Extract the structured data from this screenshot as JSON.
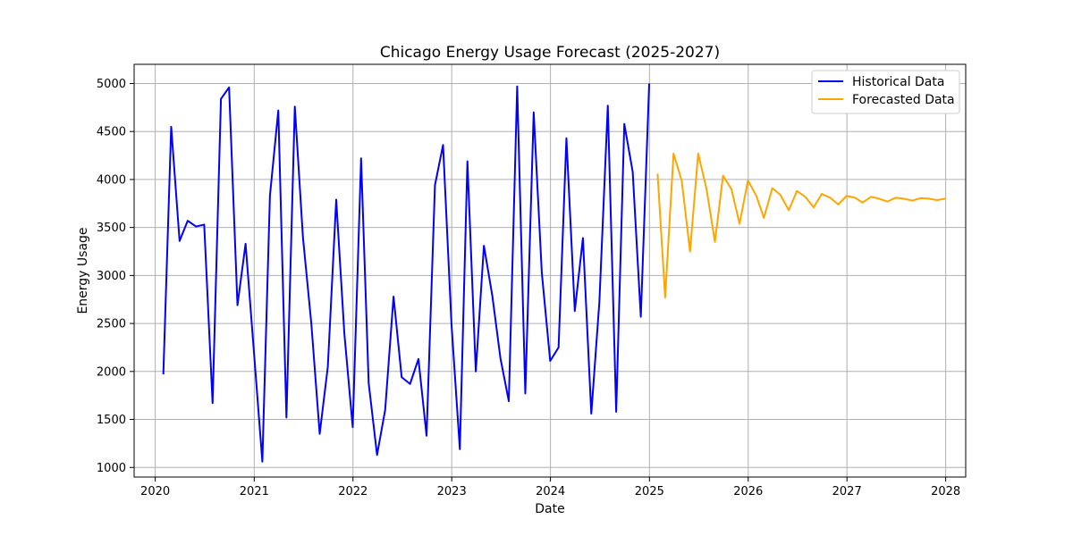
{
  "chart_data": {
    "type": "line",
    "title": "Chicago Energy Usage Forecast (2025-2027)",
    "xlabel": "Date",
    "ylabel": "Energy Usage",
    "xlim": [
      "2019-10-15",
      "2028-03-15"
    ],
    "ylim": [
      900,
      5200
    ],
    "x_ticks": [
      "2020-01-01",
      "2021-01-01",
      "2022-01-01",
      "2023-01-01",
      "2024-01-01",
      "2025-01-01",
      "2026-01-01",
      "2027-01-01",
      "2028-01-01"
    ],
    "x_tick_labels": [
      "2020",
      "2021",
      "2022",
      "2023",
      "2024",
      "2025",
      "2026",
      "2027",
      "2028"
    ],
    "y_ticks": [
      1000,
      1500,
      2000,
      2500,
      3000,
      3500,
      4000,
      4500,
      5000
    ],
    "grid": true,
    "legend_position": "top-right",
    "series": [
      {
        "name": "Historical Data",
        "color": "#0000ff",
        "x": [
          "2020-01-31",
          "2020-02-29",
          "2020-03-31",
          "2020-04-30",
          "2020-05-31",
          "2020-06-30",
          "2020-07-31",
          "2020-08-31",
          "2020-09-30",
          "2020-10-31",
          "2020-11-30",
          "2020-12-31",
          "2021-01-31",
          "2021-02-28",
          "2021-03-31",
          "2021-04-30",
          "2021-05-31",
          "2021-06-30",
          "2021-07-31",
          "2021-08-31",
          "2021-09-30",
          "2021-10-31",
          "2021-11-30",
          "2021-12-31",
          "2022-01-31",
          "2022-02-28",
          "2022-03-31",
          "2022-04-30",
          "2022-05-31",
          "2022-06-30",
          "2022-07-31",
          "2022-08-31",
          "2022-09-30",
          "2022-10-31",
          "2022-11-30",
          "2022-12-31",
          "2023-01-31",
          "2023-02-28",
          "2023-03-31",
          "2023-04-30",
          "2023-05-31",
          "2023-06-30",
          "2023-07-31",
          "2023-08-31",
          "2023-09-30",
          "2023-10-31",
          "2023-11-30",
          "2023-12-31",
          "2024-01-31",
          "2024-02-29",
          "2024-03-31",
          "2024-04-30",
          "2024-05-31",
          "2024-06-30",
          "2024-07-31",
          "2024-08-31",
          "2024-09-30",
          "2024-10-31",
          "2024-11-30",
          "2024-12-31"
        ],
        "values": [
          1970,
          4550,
          3360,
          3570,
          3510,
          3530,
          1670,
          4840,
          4960,
          2690,
          3330,
          2200,
          1060,
          3830,
          4720,
          1520,
          4760,
          3400,
          2500,
          1350,
          2050,
          3790,
          2400,
          1420,
          4220,
          1880,
          1130,
          1600,
          2780,
          1940,
          1870,
          2130,
          1330,
          3940,
          4360,
          2500,
          1190,
          4190,
          2000,
          3310,
          2790,
          2140,
          1690,
          4970,
          1770,
          4700,
          3030,
          2110,
          2250,
          4430,
          2630,
          3390,
          1560,
          2730,
          4770,
          1580,
          4580,
          4080,
          2570,
          5000
        ]
      },
      {
        "name": "Forecasted Data",
        "color": "#ffa500",
        "x": [
          "2025-01-31",
          "2025-02-28",
          "2025-03-31",
          "2025-04-30",
          "2025-05-31",
          "2025-06-30",
          "2025-07-31",
          "2025-08-31",
          "2025-09-30",
          "2025-10-31",
          "2025-11-30",
          "2025-12-31",
          "2026-01-31",
          "2026-02-28",
          "2026-03-31",
          "2026-04-30",
          "2026-05-31",
          "2026-06-30",
          "2026-07-31",
          "2026-08-31",
          "2026-09-30",
          "2026-10-31",
          "2026-11-30",
          "2026-12-31",
          "2027-01-31",
          "2027-02-28",
          "2027-03-31",
          "2027-04-30",
          "2027-05-31",
          "2027-06-30",
          "2027-07-31",
          "2027-08-31",
          "2027-09-30",
          "2027-10-31",
          "2027-11-30",
          "2027-12-31"
        ],
        "values": [
          4060,
          2770,
          4270,
          3990,
          3250,
          4270,
          3900,
          3350,
          4040,
          3900,
          3540,
          3990,
          3830,
          3600,
          3910,
          3840,
          3680,
          3880,
          3820,
          3710,
          3850,
          3810,
          3740,
          3830,
          3810,
          3760,
          3820,
          3800,
          3770,
          3810,
          3800,
          3780,
          3805,
          3800,
          3785,
          3800
        ]
      }
    ]
  }
}
